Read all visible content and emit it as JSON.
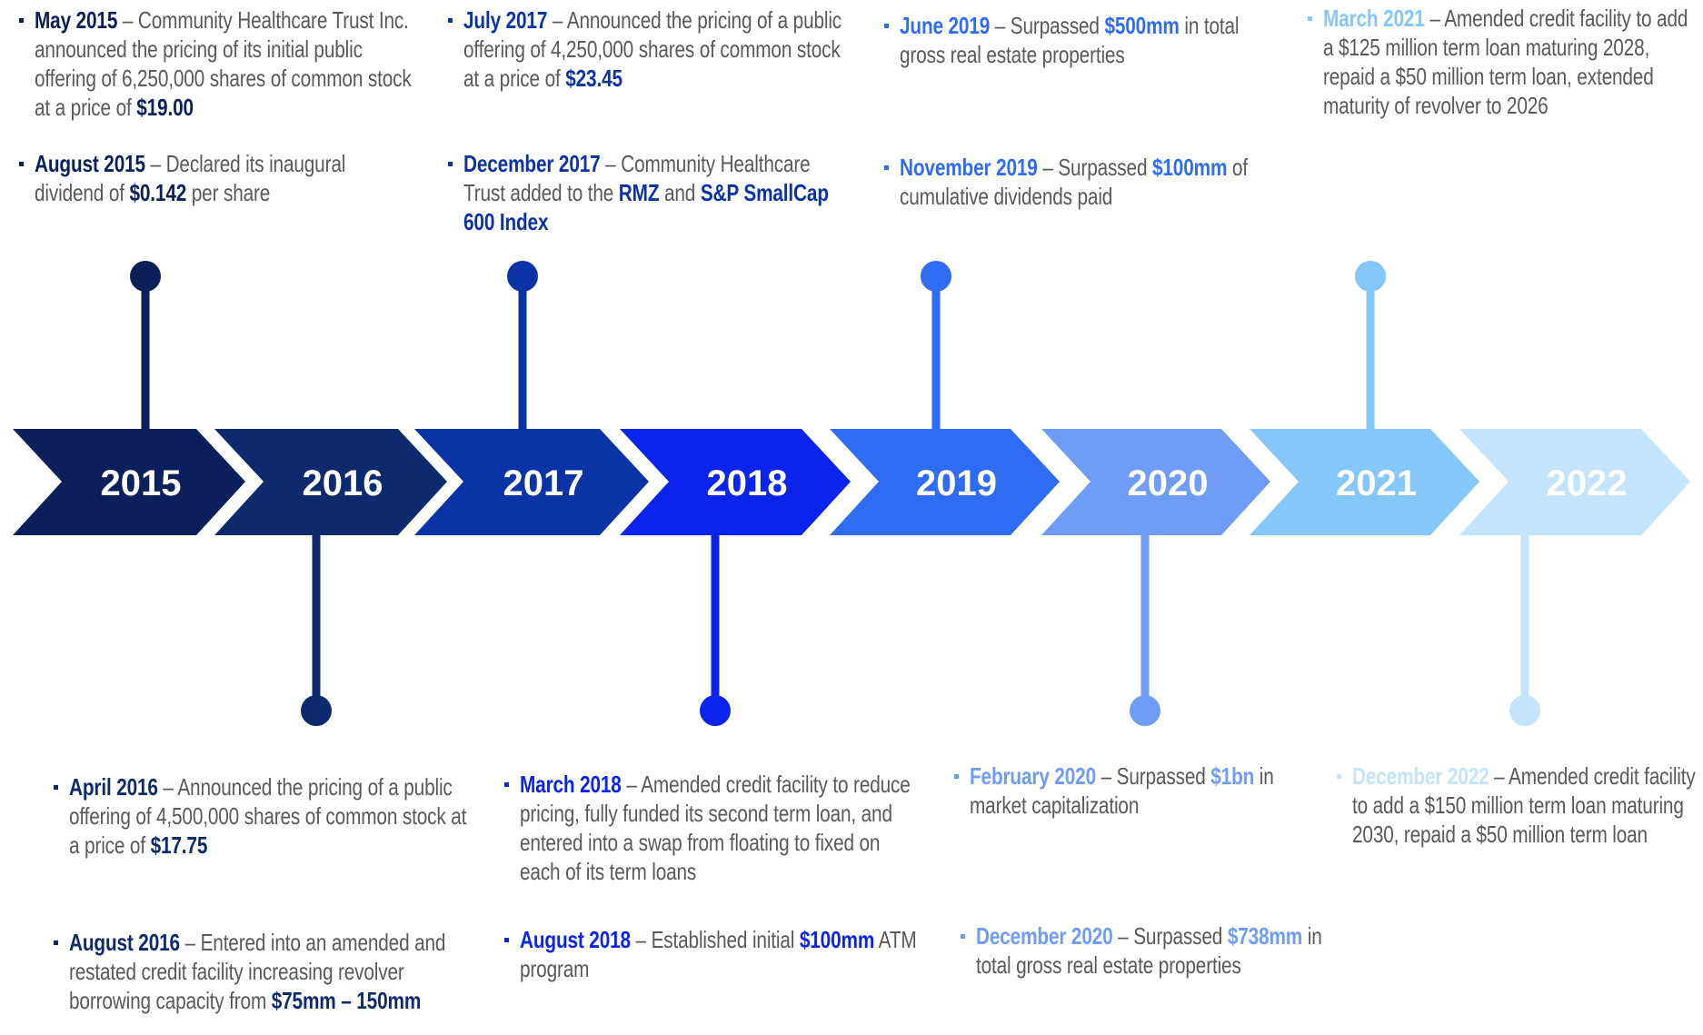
{
  "years": [
    {
      "label": "2015",
      "color": "#0b1f5a",
      "events": [
        {
          "date": "May 2015",
          "parts": [
            {
              "text": " – Community Healthcare Trust Inc. announced the pricing of its initial public offering of 6,250,000 shares of common stock at a price of ",
              "highlight": false
            },
            {
              "text": "$19.00",
              "highlight": true
            }
          ]
        },
        {
          "date": "August 2015",
          "parts": [
            {
              "text": " – Declared its inaugural dividend of ",
              "highlight": false
            },
            {
              "text": "$0.142",
              "highlight": true
            },
            {
              "text": " per share",
              "highlight": false
            }
          ]
        }
      ]
    },
    {
      "label": "2016",
      "color": "#0d2a6e",
      "events": [
        {
          "date": "April 2016",
          "parts": [
            {
              "text": " – Announced the pricing of a public offering of 4,500,000 shares of common stock at a price of ",
              "highlight": false
            },
            {
              "text": "$17.75",
              "highlight": true
            }
          ]
        },
        {
          "date": "August 2016",
          "parts": [
            {
              "text": " – Entered into an amended and restated credit facility increasing revolver borrowing capacity from ",
              "highlight": false
            },
            {
              "text": "$75mm – 150mm",
              "highlight": true
            }
          ]
        }
      ]
    },
    {
      "label": "2017",
      "color": "#0a34a6",
      "events": [
        {
          "date": "July 2017",
          "parts": [
            {
              "text": " – Announced the pricing of a public offering of 4,250,000 shares of common stock at a price of ",
              "highlight": false
            },
            {
              "text": "$23.45",
              "highlight": true
            }
          ]
        },
        {
          "date": "December 2017",
          "parts": [
            {
              "text": " – Community Healthcare Trust added to the ",
              "highlight": false
            },
            {
              "text": "RMZ",
              "highlight": true
            },
            {
              "text": " and ",
              "highlight": false
            },
            {
              "text": "S&P SmallCap 600 Index",
              "highlight": true
            }
          ]
        }
      ]
    },
    {
      "label": "2018",
      "color": "#0a24ee",
      "events": [
        {
          "date": "March 2018",
          "parts": [
            {
              "text": " – Amended credit facility to reduce pricing, fully funded its second term loan, and entered into a swap from floating to fixed on each of its term loans",
              "highlight": false
            }
          ]
        },
        {
          "date": "August 2018",
          "parts": [
            {
              "text": " – Established initial ",
              "highlight": false
            },
            {
              "text": "$100mm",
              "highlight": true
            },
            {
              "text": " ATM program",
              "highlight": false
            }
          ]
        }
      ]
    },
    {
      "label": "2019",
      "color": "#2f6cf4",
      "events": [
        {
          "date": "June 2019",
          "parts": [
            {
              "text": " –  Surpassed ",
              "highlight": false
            },
            {
              "text": "$500mm",
              "highlight": true
            },
            {
              "text": " in total gross real estate properties",
              "highlight": false
            }
          ]
        },
        {
          "date": "November 2019",
          "parts": [
            {
              "text": " –  Surpassed ",
              "highlight": false
            },
            {
              "text": "$100mm",
              "highlight": true
            },
            {
              "text": " of cumulative dividends paid",
              "highlight": false
            }
          ]
        }
      ]
    },
    {
      "label": "2020",
      "color": "#6f9cf6",
      "events": [
        {
          "date": "February 2020",
          "parts": [
            {
              "text": " – Surpassed ",
              "highlight": false
            },
            {
              "text": "$1bn",
              "highlight": true
            },
            {
              "text": " in market capitalization",
              "highlight": false
            }
          ]
        },
        {
          "date": "December 2020",
          "parts": [
            {
              "text": " – Surpassed ",
              "highlight": false
            },
            {
              "text": "$738mm",
              "highlight": true
            },
            {
              "text": " in total gross real estate properties",
              "highlight": false
            }
          ]
        }
      ]
    },
    {
      "label": "2021",
      "color": "#86c7fa",
      "events": [
        {
          "date": "March 2021",
          "parts": [
            {
              "text": " –  Amended credit facility to add a $125 million term loan maturing 2028, repaid a $50 million term loan, extended maturity of revolver to 2026",
              "highlight": false
            }
          ]
        }
      ]
    },
    {
      "label": "2022",
      "color": "#c4e4fd",
      "events": [
        {
          "date": "December 2022",
          "parts": [
            {
              "text": " –  Amended credit facility to add a $150 million term loan maturing 2030, repaid a $50 million term loan",
              "highlight": false
            }
          ]
        }
      ]
    }
  ]
}
